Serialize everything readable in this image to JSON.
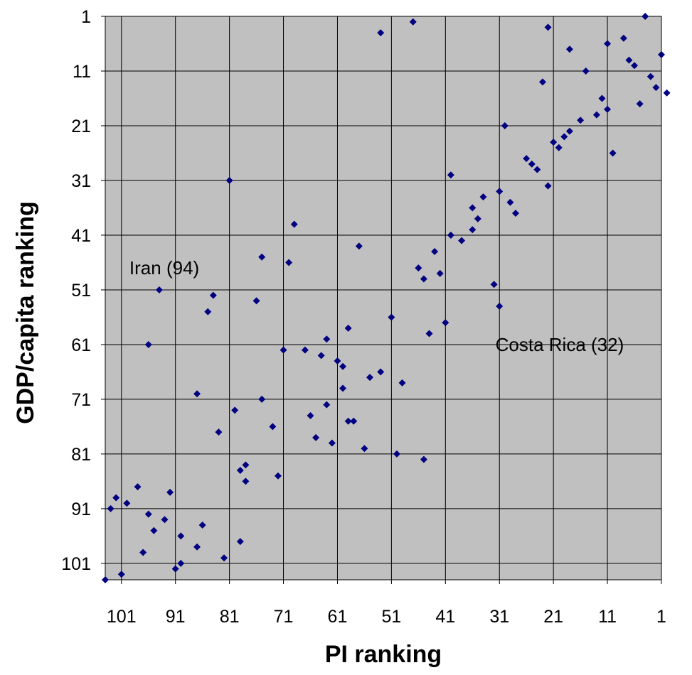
{
  "chart_data": {
    "type": "scatter",
    "xlabel": "PI ranking",
    "ylabel": "GDP/capita ranking",
    "xlim": [
      104,
      1
    ],
    "ylim": [
      1,
      104
    ],
    "x_reversed": true,
    "y_reversed": true,
    "xticks": [
      101,
      91,
      81,
      71,
      61,
      51,
      41,
      31,
      21,
      11,
      1
    ],
    "yticks": [
      1,
      11,
      21,
      31,
      41,
      51,
      61,
      71,
      81,
      91,
      101
    ],
    "grid": true,
    "plot_background": "#C0C0C0",
    "marker_color": "#000080",
    "marker": "diamond",
    "annotations": [
      {
        "text": "Iran (94)",
        "x": 94,
        "y": 47
      },
      {
        "text": "Costa Rica (32)",
        "x": 32,
        "y": 61
      }
    ],
    "points": [
      [
        4,
        1
      ],
      [
        47,
        2
      ],
      [
        53,
        4
      ],
      [
        22,
        3
      ],
      [
        8,
        5
      ],
      [
        11,
        6
      ],
      [
        18,
        7
      ],
      [
        1,
        8
      ],
      [
        7,
        9
      ],
      [
        6,
        10
      ],
      [
        15,
        11
      ],
      [
        3,
        12
      ],
      [
        23,
        13
      ],
      [
        2,
        14
      ],
      [
        0,
        15
      ],
      [
        12,
        16
      ],
      [
        5,
        17
      ],
      [
        11,
        18
      ],
      [
        13,
        19
      ],
      [
        16,
        20
      ],
      [
        30,
        21
      ],
      [
        18,
        22
      ],
      [
        19,
        23
      ],
      [
        21,
        24
      ],
      [
        20,
        25
      ],
      [
        10,
        26
      ],
      [
        26,
        27
      ],
      [
        25,
        28
      ],
      [
        24,
        29
      ],
      [
        40,
        30
      ],
      [
        81,
        31
      ],
      [
        22,
        32
      ],
      [
        31,
        33
      ],
      [
        34,
        34
      ],
      [
        29,
        35
      ],
      [
        36,
        36
      ],
      [
        28,
        37
      ],
      [
        35,
        38
      ],
      [
        69,
        39
      ],
      [
        36,
        40
      ],
      [
        40,
        41
      ],
      [
        38,
        42
      ],
      [
        57,
        43
      ],
      [
        43,
        44
      ],
      [
        75,
        45
      ],
      [
        70,
        46
      ],
      [
        46,
        47
      ],
      [
        42,
        48
      ],
      [
        45,
        49
      ],
      [
        32,
        50
      ],
      [
        94,
        51
      ],
      [
        84,
        52
      ],
      [
        76,
        53
      ],
      [
        31,
        54
      ],
      [
        85,
        55
      ],
      [
        51,
        56
      ],
      [
        41,
        57
      ],
      [
        59,
        58
      ],
      [
        44,
        59
      ],
      [
        63,
        60
      ],
      [
        96,
        61
      ],
      [
        71,
        62
      ],
      [
        67,
        62
      ],
      [
        64,
        63
      ],
      [
        61,
        64
      ],
      [
        60,
        65
      ],
      [
        53,
        66
      ],
      [
        55,
        67
      ],
      [
        49,
        68
      ],
      [
        60,
        69
      ],
      [
        87,
        70
      ],
      [
        75,
        71
      ],
      [
        63,
        72
      ],
      [
        80,
        73
      ],
      [
        66,
        74
      ],
      [
        58,
        75
      ],
      [
        59,
        75
      ],
      [
        73,
        76
      ],
      [
        83,
        77
      ],
      [
        65,
        78
      ],
      [
        62,
        79
      ],
      [
        56,
        80
      ],
      [
        50,
        81
      ],
      [
        45,
        82
      ],
      [
        78,
        83
      ],
      [
        79,
        84
      ],
      [
        72,
        85
      ],
      [
        78,
        86
      ],
      [
        98,
        87
      ],
      [
        92,
        88
      ],
      [
        102,
        89
      ],
      [
        100,
        90
      ],
      [
        103,
        91
      ],
      [
        96,
        92
      ],
      [
        93,
        93
      ],
      [
        86,
        94
      ],
      [
        95,
        95
      ],
      [
        90,
        96
      ],
      [
        79,
        97
      ],
      [
        87,
        98
      ],
      [
        97,
        99
      ],
      [
        82,
        100
      ],
      [
        90,
        101
      ],
      [
        91,
        102
      ],
      [
        101,
        103
      ],
      [
        104,
        104
      ]
    ]
  }
}
